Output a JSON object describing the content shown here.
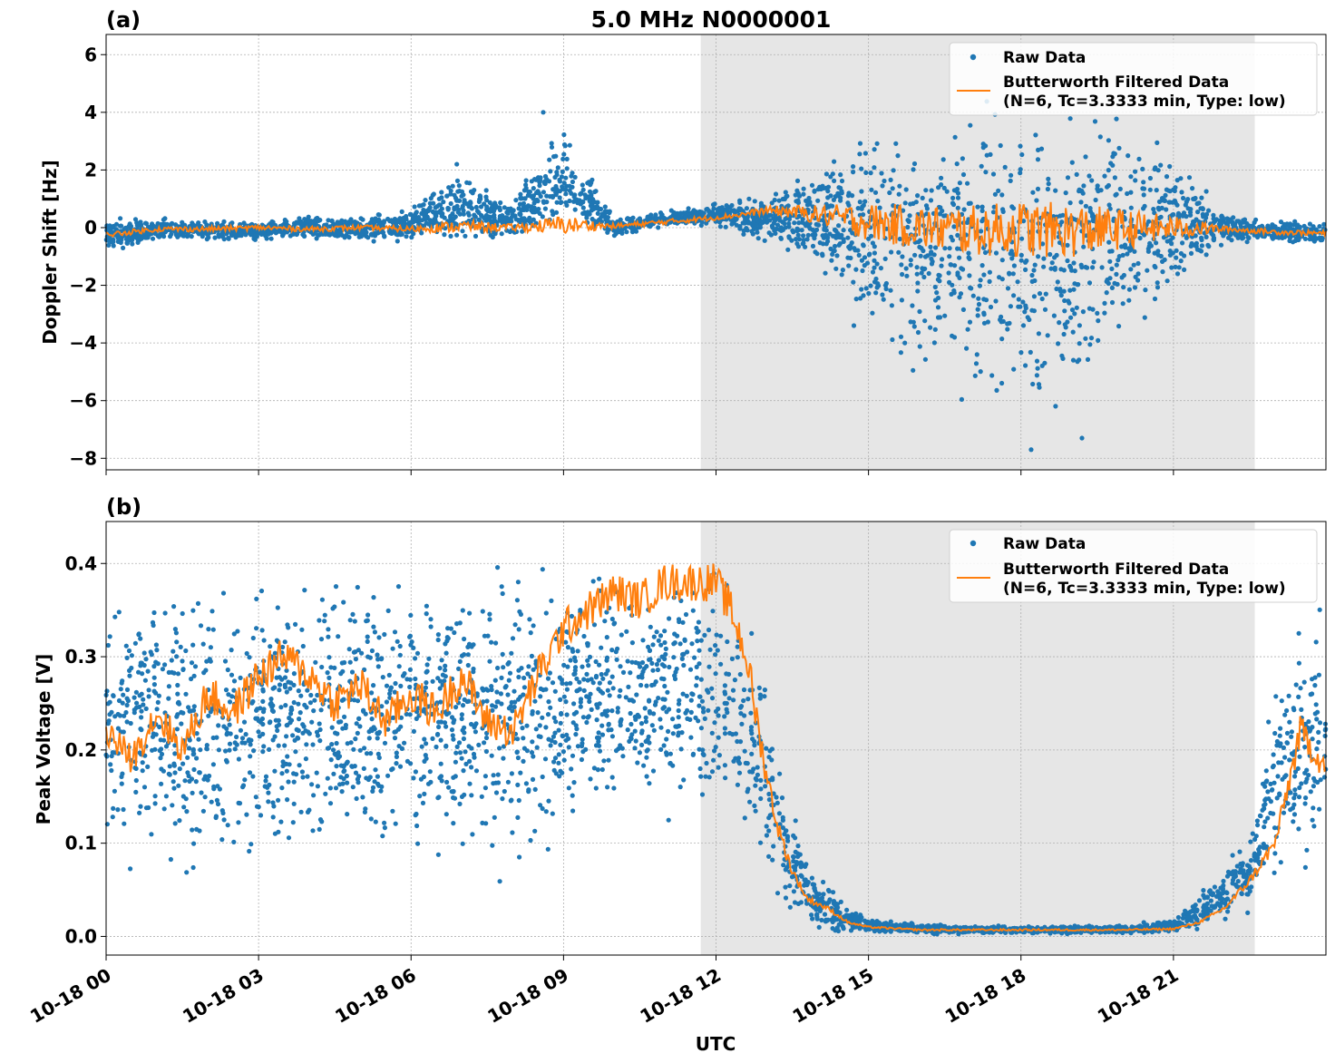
{
  "figure": {
    "title": "5.0 MHz N0000001",
    "xlabel": "UTC",
    "panel_a_label": "(a)",
    "panel_b_label": "(b)"
  },
  "colors": {
    "raw": "#1f77b4",
    "filtered": "#ff7f0e",
    "shade": "#e6e6e6",
    "grid": "#b0b0b0"
  },
  "legend": {
    "raw": "Raw Data",
    "filtered_line1": "Butterworth Filtered Data",
    "filtered_line2": "(N=6, Tc=3.3333 min, Type: low)"
  },
  "chart_data": [
    {
      "type": "scatter",
      "panel": "(a)",
      "title": "5.0 MHz N0000001",
      "xlabel": "",
      "ylabel": "Doppler Shift [Hz]",
      "x_unit": "hours UTC on 10-18",
      "xlim": [
        0,
        24
      ],
      "ylim": [
        -8.4,
        6.7
      ],
      "xticks": [
        0,
        3,
        6,
        9,
        12,
        15,
        18,
        21
      ],
      "yticks": [
        -8,
        -6,
        -4,
        -2,
        0,
        2,
        4,
        6
      ],
      "ytick_labels": [
        "−8",
        "−6",
        "−4",
        "−2",
        "0",
        "2",
        "4",
        "6"
      ],
      "grid": true,
      "legend_position": "upper right",
      "shaded_interval_hours": [
        11.7,
        22.6
      ],
      "series": [
        {
          "name": "Raw Data",
          "kind": "points",
          "x": [
            0,
            1,
            2,
            3,
            4,
            5,
            6,
            7,
            8,
            9,
            10,
            11,
            12,
            13,
            14,
            15,
            16,
            17,
            18,
            19,
            20,
            21,
            22,
            23,
            24
          ],
          "y_max": [
            0.4,
            0.4,
            0.3,
            0.3,
            0.5,
            0.5,
            0.8,
            2.2,
            1.0,
            4.0,
            0.4,
            0.6,
            0.9,
            1.2,
            2.5,
            4.0,
            4.5,
            5.0,
            5.5,
            5.3,
            4.8,
            3.0,
            0.7,
            0.3,
            0.3
          ],
          "y_min": [
            -0.9,
            -0.6,
            -0.5,
            -0.5,
            -0.5,
            -0.6,
            -0.6,
            -0.7,
            -0.6,
            -0.4,
            -0.4,
            0.0,
            0.0,
            -0.6,
            -1.8,
            -4.7,
            -5.8,
            -6.4,
            -7.7,
            -7.3,
            -4.5,
            -2.5,
            -0.7,
            -0.6,
            -0.7
          ],
          "notable_outliers": [
            [
              6.9,
              2.2
            ],
            [
              8.6,
              4.0
            ],
            [
              18.2,
              -7.7
            ],
            [
              19.2,
              -7.3
            ]
          ]
        },
        {
          "name": "Butterworth Filtered Data (N=6, Tc=3.3333 min, Type: low)",
          "kind": "line",
          "x": [
            0,
            1,
            2,
            3,
            4,
            5,
            6,
            7,
            8,
            9,
            10,
            11,
            11.7,
            12,
            12.5,
            13,
            13.5,
            14,
            15,
            16,
            17,
            18,
            19,
            20,
            21,
            22,
            23,
            24
          ],
          "y": [
            -0.25,
            -0.05,
            -0.05,
            0.0,
            -0.05,
            0.0,
            -0.05,
            0.05,
            0.0,
            0.1,
            0.05,
            0.2,
            0.3,
            0.35,
            0.45,
            0.6,
            0.55,
            0.45,
            0.2,
            0.0,
            -0.1,
            -0.05,
            -0.1,
            -0.05,
            0.0,
            -0.05,
            -0.15,
            -0.2
          ]
        }
      ]
    },
    {
      "type": "scatter",
      "panel": "(b)",
      "xlabel": "UTC",
      "ylabel": "Peak Voltage [V]",
      "x_unit": "hours UTC on 10-18",
      "xlim": [
        0,
        24
      ],
      "ylim": [
        -0.02,
        0.445
      ],
      "xticks": [
        0,
        3,
        6,
        9,
        12,
        15,
        18,
        21
      ],
      "xtick_labels": [
        "10-18 00",
        "10-18 03",
        "10-18 06",
        "10-18 09",
        "10-18 12",
        "10-18 15",
        "10-18 18",
        "10-18 21"
      ],
      "yticks": [
        0.0,
        0.1,
        0.2,
        0.3,
        0.4
      ],
      "ytick_labels": [
        "0.0",
        "0.1",
        "0.2",
        "0.3",
        "0.4"
      ],
      "grid": true,
      "legend_position": "upper right",
      "shaded_interval_hours": [
        11.7,
        22.6
      ],
      "series": [
        {
          "name": "Raw Data",
          "kind": "points",
          "x": [
            0,
            1,
            2,
            3,
            4,
            5,
            6,
            7,
            8,
            9,
            10,
            11,
            11.7,
            12.3,
            12.8,
            13.2,
            13.6,
            14.0,
            14.5,
            15,
            16,
            17,
            18,
            19,
            20,
            21,
            21.5,
            22,
            22.5,
            23,
            23.5,
            24
          ],
          "y_max": [
            0.39,
            0.41,
            0.42,
            0.42,
            0.42,
            0.42,
            0.42,
            0.42,
            0.42,
            0.43,
            0.43,
            0.42,
            0.42,
            0.41,
            0.36,
            0.22,
            0.12,
            0.07,
            0.04,
            0.02,
            0.015,
            0.012,
            0.012,
            0.012,
            0.012,
            0.02,
            0.05,
            0.08,
            0.12,
            0.3,
            0.38,
            0.4
          ],
          "y_min": [
            0.07,
            0.04,
            0.03,
            0.04,
            0.05,
            0.06,
            0.06,
            0.05,
            0.05,
            0.06,
            0.1,
            0.1,
            0.13,
            0.08,
            0.05,
            0.02,
            0.01,
            0.005,
            0.002,
            0.002,
            0.002,
            0.002,
            0.002,
            0.002,
            0.002,
            0.003,
            0.005,
            0.01,
            0.02,
            0.03,
            0.05,
            0.06
          ]
        },
        {
          "name": "Butterworth Filtered Data (N=6, Tc=3.3333 min, Type: low)",
          "kind": "line",
          "x": [
            0,
            0.5,
            1,
            1.5,
            2,
            2.5,
            3,
            3.5,
            4,
            4.5,
            5,
            5.5,
            6,
            6.5,
            7,
            7.5,
            8,
            8.5,
            9,
            9.5,
            10,
            10.5,
            11,
            11.5,
            12,
            12.3,
            12.6,
            12.9,
            13.2,
            13.5,
            13.8,
            14.2,
            14.6,
            15,
            16,
            17,
            18,
            19,
            20,
            21,
            21.5,
            22,
            22.5,
            23,
            23.5,
            24
          ],
          "y": [
            0.22,
            0.19,
            0.24,
            0.2,
            0.26,
            0.24,
            0.28,
            0.3,
            0.28,
            0.25,
            0.27,
            0.23,
            0.26,
            0.24,
            0.28,
            0.23,
            0.22,
            0.28,
            0.33,
            0.35,
            0.37,
            0.36,
            0.38,
            0.38,
            0.38,
            0.35,
            0.3,
            0.2,
            0.12,
            0.07,
            0.04,
            0.03,
            0.015,
            0.01,
            0.007,
            0.007,
            0.007,
            0.007,
            0.007,
            0.008,
            0.015,
            0.03,
            0.06,
            0.1,
            0.22,
            0.18
          ]
        }
      ]
    }
  ]
}
